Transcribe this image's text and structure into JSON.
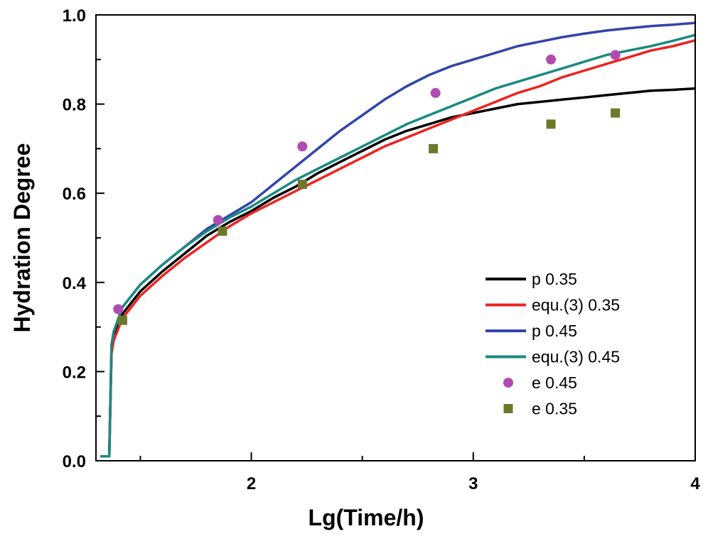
{
  "chart_data": {
    "type": "line",
    "title": "",
    "xlabel": "Lg(Time/h)",
    "ylabel": "Hydration Degree",
    "xlim": [
      1.3,
      4.0
    ],
    "ylim": [
      0.0,
      1.0
    ],
    "x_major_ticks": [
      {
        "value": 2,
        "label": "2"
      },
      {
        "value": 3,
        "label": "3"
      },
      {
        "value": 4,
        "label": "4"
      }
    ],
    "x_minor_ticks": [
      1.5,
      2.5,
      3.5
    ],
    "y_major_ticks": [
      {
        "value": 0.0,
        "label": "0.0"
      },
      {
        "value": 0.2,
        "label": "0.2"
      },
      {
        "value": 0.4,
        "label": "0.4"
      },
      {
        "value": 0.6,
        "label": "0.6"
      },
      {
        "value": 0.8,
        "label": "0.8"
      },
      {
        "value": 1.0,
        "label": "1.0"
      }
    ],
    "y_minor_ticks": [
      0.1,
      0.3,
      0.5,
      0.7,
      0.9
    ],
    "grid": false,
    "legend_position": "bottom-right",
    "series": [
      {
        "name": "p 0.35",
        "kind": "line",
        "color": "#000000",
        "points": [
          [
            1.32,
            0.01
          ],
          [
            1.36,
            0.01
          ],
          [
            1.37,
            0.25
          ],
          [
            1.38,
            0.28
          ],
          [
            1.42,
            0.33
          ],
          [
            1.5,
            0.38
          ],
          [
            1.6,
            0.425
          ],
          [
            1.7,
            0.465
          ],
          [
            1.8,
            0.505
          ],
          [
            1.9,
            0.535
          ],
          [
            2.0,
            0.56
          ],
          [
            2.1,
            0.59
          ],
          [
            2.2,
            0.615
          ],
          [
            2.3,
            0.645
          ],
          [
            2.4,
            0.67
          ],
          [
            2.5,
            0.695
          ],
          [
            2.6,
            0.72
          ],
          [
            2.7,
            0.74
          ],
          [
            2.8,
            0.755
          ],
          [
            2.9,
            0.77
          ],
          [
            3.0,
            0.78
          ],
          [
            3.1,
            0.79
          ],
          [
            3.2,
            0.8
          ],
          [
            3.3,
            0.805
          ],
          [
            3.4,
            0.81
          ],
          [
            3.5,
            0.815
          ],
          [
            3.6,
            0.82
          ],
          [
            3.7,
            0.825
          ],
          [
            3.8,
            0.83
          ],
          [
            3.9,
            0.832
          ],
          [
            4.0,
            0.835
          ]
        ]
      },
      {
        "name": "equ.(3) 0.35",
        "kind": "line",
        "color": "#ee2222",
        "points": [
          [
            1.32,
            0.01
          ],
          [
            1.36,
            0.01
          ],
          [
            1.37,
            0.24
          ],
          [
            1.38,
            0.27
          ],
          [
            1.42,
            0.32
          ],
          [
            1.5,
            0.37
          ],
          [
            1.6,
            0.415
          ],
          [
            1.7,
            0.455
          ],
          [
            1.8,
            0.49
          ],
          [
            1.9,
            0.525
          ],
          [
            2.0,
            0.555
          ],
          [
            2.1,
            0.58
          ],
          [
            2.2,
            0.605
          ],
          [
            2.3,
            0.63
          ],
          [
            2.4,
            0.655
          ],
          [
            2.5,
            0.68
          ],
          [
            2.6,
            0.705
          ],
          [
            2.7,
            0.725
          ],
          [
            2.8,
            0.745
          ],
          [
            2.9,
            0.765
          ],
          [
            3.0,
            0.785
          ],
          [
            3.1,
            0.805
          ],
          [
            3.2,
            0.825
          ],
          [
            3.3,
            0.84
          ],
          [
            3.4,
            0.86
          ],
          [
            3.5,
            0.875
          ],
          [
            3.6,
            0.89
          ],
          [
            3.7,
            0.905
          ],
          [
            3.8,
            0.92
          ],
          [
            3.9,
            0.93
          ],
          [
            4.0,
            0.943
          ]
        ]
      },
      {
        "name": "p 0.45",
        "kind": "line",
        "color": "#3344aa",
        "points": [
          [
            1.32,
            0.01
          ],
          [
            1.36,
            0.01
          ],
          [
            1.37,
            0.26
          ],
          [
            1.38,
            0.29
          ],
          [
            1.42,
            0.345
          ],
          [
            1.5,
            0.395
          ],
          [
            1.6,
            0.44
          ],
          [
            1.7,
            0.48
          ],
          [
            1.8,
            0.52
          ],
          [
            1.9,
            0.55
          ],
          [
            2.0,
            0.58
          ],
          [
            2.1,
            0.62
          ],
          [
            2.2,
            0.66
          ],
          [
            2.3,
            0.7
          ],
          [
            2.4,
            0.74
          ],
          [
            2.5,
            0.775
          ],
          [
            2.6,
            0.81
          ],
          [
            2.7,
            0.84
          ],
          [
            2.8,
            0.865
          ],
          [
            2.9,
            0.885
          ],
          [
            3.0,
            0.9
          ],
          [
            3.1,
            0.915
          ],
          [
            3.2,
            0.93
          ],
          [
            3.3,
            0.94
          ],
          [
            3.4,
            0.95
          ],
          [
            3.5,
            0.958
          ],
          [
            3.6,
            0.965
          ],
          [
            3.7,
            0.97
          ],
          [
            3.8,
            0.975
          ],
          [
            3.9,
            0.978
          ],
          [
            4.0,
            0.982
          ]
        ]
      },
      {
        "name": "equ.(3) 0.45",
        "kind": "line",
        "color": "#1a8a80",
        "points": [
          [
            1.32,
            0.01
          ],
          [
            1.36,
            0.01
          ],
          [
            1.37,
            0.26
          ],
          [
            1.38,
            0.29
          ],
          [
            1.42,
            0.345
          ],
          [
            1.5,
            0.395
          ],
          [
            1.6,
            0.44
          ],
          [
            1.7,
            0.48
          ],
          [
            1.8,
            0.515
          ],
          [
            1.9,
            0.545
          ],
          [
            2.0,
            0.57
          ],
          [
            2.1,
            0.6
          ],
          [
            2.2,
            0.63
          ],
          [
            2.3,
            0.655
          ],
          [
            2.4,
            0.68
          ],
          [
            2.5,
            0.705
          ],
          [
            2.6,
            0.73
          ],
          [
            2.7,
            0.755
          ],
          [
            2.8,
            0.775
          ],
          [
            2.9,
            0.795
          ],
          [
            3.0,
            0.815
          ],
          [
            3.1,
            0.835
          ],
          [
            3.2,
            0.85
          ],
          [
            3.3,
            0.865
          ],
          [
            3.4,
            0.88
          ],
          [
            3.5,
            0.895
          ],
          [
            3.6,
            0.91
          ],
          [
            3.7,
            0.92
          ],
          [
            3.8,
            0.93
          ],
          [
            3.9,
            0.942
          ],
          [
            4.0,
            0.955
          ]
        ]
      },
      {
        "name": "e 0.45",
        "kind": "scatter",
        "marker": "circle",
        "color": "#b04cb0",
        "points": [
          [
            1.4,
            0.34
          ],
          [
            1.85,
            0.54
          ],
          [
            2.23,
            0.705
          ],
          [
            2.83,
            0.825
          ],
          [
            3.35,
            0.9
          ],
          [
            3.64,
            0.91
          ]
        ]
      },
      {
        "name": "e 0.35",
        "kind": "scatter",
        "marker": "square",
        "color": "#6b7a2a",
        "points": [
          [
            1.42,
            0.315
          ],
          [
            1.87,
            0.515
          ],
          [
            2.23,
            0.62
          ],
          [
            2.82,
            0.7
          ],
          [
            3.35,
            0.755
          ],
          [
            3.64,
            0.78
          ]
        ]
      }
    ]
  }
}
